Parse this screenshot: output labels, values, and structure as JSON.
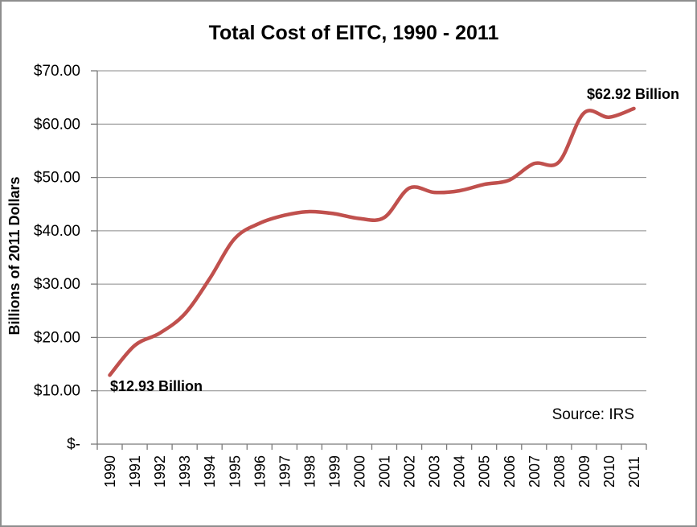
{
  "frame": {
    "background": "#ffffff",
    "border_color": "#8e8e8e"
  },
  "chart_data": {
    "type": "line",
    "title": "Total Cost of EITC, 1990 - 2011",
    "ylabel": "Billions of 2011 Dollars",
    "xlabel": "",
    "categories": [
      "1990",
      "1991",
      "1992",
      "1993",
      "1994",
      "1995",
      "1996",
      "1997",
      "1998",
      "1999",
      "2000",
      "2001",
      "2002",
      "2003",
      "2004",
      "2005",
      "2006",
      "2007",
      "2008",
      "2009",
      "2010",
      "2011"
    ],
    "series": [
      {
        "name": "Total Cost of EITC",
        "values": [
          12.93,
          18.5,
          20.8,
          24.4,
          31.0,
          38.5,
          41.4,
          42.9,
          43.6,
          43.2,
          42.3,
          42.5,
          48.0,
          47.2,
          47.5,
          48.7,
          49.5,
          52.6,
          52.9,
          62.1,
          61.3,
          62.92
        ]
      }
    ],
    "ylim": [
      0,
      70
    ],
    "ytick_step": 10,
    "ytick_labels": [
      "$-",
      "$10.00",
      "$20.00",
      "$30.00",
      "$40.00",
      "$50.00",
      "$60.00",
      "$70.00"
    ],
    "grid": true,
    "legend": "none",
    "line_color": "#C0504D",
    "gridline_color": "#8a8a8a",
    "axis_color": "#7a7a7a",
    "smoothed": true,
    "annotations": [
      {
        "text": "$12.93 Billion",
        "year": "1990",
        "value": 12.93
      },
      {
        "text": "$62.92 Billion",
        "year": "2011",
        "value": 62.92
      }
    ],
    "source_note": "Source: IRS"
  }
}
